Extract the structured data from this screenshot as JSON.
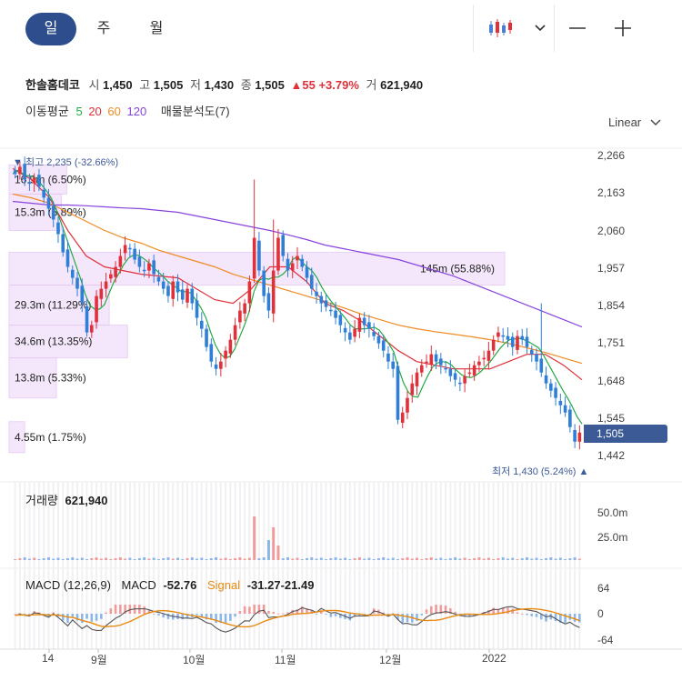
{
  "tabs": [
    "일",
    "주",
    "월"
  ],
  "active_tab": 0,
  "header": {
    "name": "한솔홈데코",
    "open_label": "시",
    "open": "1,450",
    "high_label": "고",
    "high": "1,505",
    "low_label": "저",
    "low": "1,430",
    "close_label": "종",
    "close": "1,505",
    "change": "▲55 +3.79%",
    "vol_label": "거",
    "vol": "621,940"
  },
  "indicators": {
    "label": "이동평균",
    "ma": [
      {
        "n": "5",
        "color": "#22aa44"
      },
      {
        "n": "20",
        "color": "#e0303a"
      },
      {
        "n": "60",
        "color": "#f08a24"
      },
      {
        "n": "120",
        "color": "#8844dd"
      }
    ],
    "profile_label": "매물분석도(7)"
  },
  "scale_label": "Linear",
  "chart_data": {
    "type": "candlestick",
    "y_ticks": [
      "2,266",
      "2,163",
      "2,060",
      "1,957",
      "1,854",
      "1,751",
      "1,648",
      "1,545",
      "1,442"
    ],
    "ylim": [
      1400,
      2300
    ],
    "x_ticks": [
      "14",
      "9월",
      "10월",
      "11월",
      "12월",
      "2022"
    ],
    "current_price": "1,505",
    "high_annotation": "▼ 최고 2,235 (-32.66%)",
    "low_annotation": "최저 1,430 (5.24%) ▲",
    "volume_profile": [
      {
        "label": "16.9m (6.50%)",
        "share": 6.5,
        "price_lo": 2160,
        "price_hi": 2240
      },
      {
        "label": "15.3m (5.89%)",
        "share": 5.89,
        "price_lo": 2060,
        "price_hi": 2160
      },
      {
        "label": "145m (55.88%)",
        "share": 55.88,
        "price_lo": 1910,
        "price_hi": 2000
      },
      {
        "label": "29.3m (11.29%)",
        "share": 11.29,
        "price_lo": 1800,
        "price_hi": 1910
      },
      {
        "label": "34.6m (13.35%)",
        "share": 13.35,
        "price_lo": 1710,
        "price_hi": 1800
      },
      {
        "label": "13.8m (5.33%)",
        "share": 5.33,
        "price_lo": 1600,
        "price_hi": 1710
      },
      {
        "label": "4.55m (1.75%)",
        "share": 1.75,
        "price_lo": 1450,
        "price_hi": 1535
      }
    ],
    "closes": [
      2215,
      2235,
      2200,
      2190,
      2205,
      2180,
      2150,
      2120,
      2090,
      2050,
      2000,
      1960,
      1930,
      1900,
      1860,
      1780,
      1800,
      1880,
      1900,
      1920,
      1940,
      1960,
      1990,
      2020,
      2010,
      1980,
      1960,
      1950,
      1970,
      1940,
      1920,
      1900,
      1880,
      1920,
      1890,
      1870,
      1900,
      1860,
      1820,
      1790,
      1740,
      1700,
      1680,
      1700,
      1730,
      1760,
      1800,
      1840,
      1860,
      1920,
      2040,
      1950,
      1880,
      1840,
      1950,
      2040,
      1990,
      1950,
      1970,
      1990,
      1960,
      1930,
      1900,
      1880,
      1860,
      1850,
      1840,
      1820,
      1800,
      1780,
      1760,
      1790,
      1820,
      1800,
      1790,
      1770,
      1750,
      1730,
      1700,
      1680,
      1540,
      1560,
      1600,
      1640,
      1670,
      1690,
      1700,
      1720,
      1700,
      1690,
      1680,
      1660,
      1650,
      1640,
      1660,
      1670,
      1690,
      1700,
      1710,
      1730,
      1760,
      1780,
      1770,
      1760,
      1740,
      1770,
      1760,
      1740,
      1720,
      1700,
      1670,
      1640,
      1620,
      1600,
      1580,
      1560,
      1520,
      1480,
      1505
    ],
    "highs_annot": {
      "spike1": 2200,
      "spike2": 2200,
      "spike3": 1860
    },
    "ma_120": [
      2140,
      2135,
      2130,
      2130,
      2128,
      2125,
      2122,
      2120,
      2115,
      2110,
      2100,
      2090,
      2080,
      2070,
      2060,
      2048,
      2035,
      2020,
      2010,
      2000,
      1990,
      1980,
      1965,
      1950,
      1935,
      1915,
      1895,
      1875,
      1855,
      1835,
      1815,
      1795
    ],
    "ma_60": [
      2160,
      2150,
      2135,
      2110,
      2085,
      2060,
      2040,
      2025,
      2005,
      1990,
      1975,
      1960,
      1940,
      1925,
      1910,
      1895,
      1880,
      1865,
      1848,
      1830,
      1815,
      1800,
      1790,
      1782,
      1775,
      1768,
      1760,
      1750,
      1738,
      1725,
      1710,
      1695
    ],
    "ma_20": [
      2230,
      2200,
      2150,
      2060,
      1990,
      1960,
      1950,
      1940,
      1935,
      1930,
      1900,
      1870,
      1860,
      1900,
      1960,
      1960,
      1920,
      1860,
      1840,
      1810,
      1770,
      1730,
      1700,
      1690,
      1680,
      1680,
      1680,
      1700,
      1720,
      1720,
      1690,
      1650
    ],
    "volume": {
      "label": "거래량",
      "value": "621,940",
      "ticks": [
        "50.0m",
        "25.0m"
      ]
    },
    "macd": {
      "title": "MACD (12,26,9)",
      "macd_label": "MACD",
      "macd_value": "-52.76",
      "signal_label": "Signal",
      "signal_value": "-31.27-21.49",
      "ticks": [
        "64",
        "0",
        "-64"
      ]
    }
  }
}
